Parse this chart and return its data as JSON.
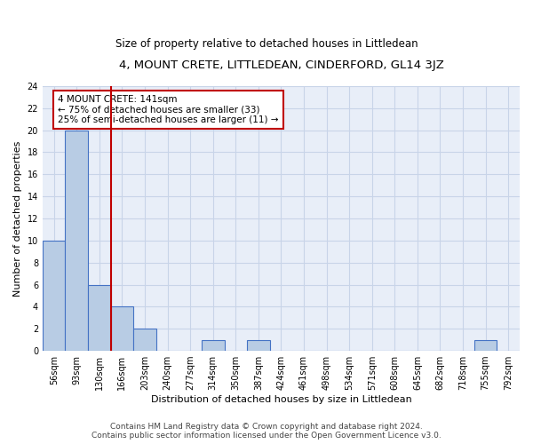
{
  "title": "4, MOUNT CRETE, LITTLEDEAN, CINDERFORD, GL14 3JZ",
  "subtitle": "Size of property relative to detached houses in Littledean",
  "xlabel": "Distribution of detached houses by size in Littledean",
  "ylabel": "Number of detached properties",
  "categories": [
    "56sqm",
    "93sqm",
    "130sqm",
    "166sqm",
    "203sqm",
    "240sqm",
    "277sqm",
    "314sqm",
    "350sqm",
    "387sqm",
    "424sqm",
    "461sqm",
    "498sqm",
    "534sqm",
    "571sqm",
    "608sqm",
    "645sqm",
    "682sqm",
    "718sqm",
    "755sqm",
    "792sqm"
  ],
  "values": [
    10,
    20,
    6,
    4,
    2,
    0,
    0,
    1,
    0,
    1,
    0,
    0,
    0,
    0,
    0,
    0,
    0,
    0,
    0,
    1,
    0
  ],
  "bar_color": "#b8cce4",
  "bar_edge_color": "#4472c4",
  "property_line_x": 2.5,
  "property_line_color": "#c00000",
  "annotation_text": "4 MOUNT CRETE: 141sqm\n← 75% of detached houses are smaller (33)\n25% of semi-detached houses are larger (11) →",
  "annotation_box_color": "white",
  "annotation_box_edge_color": "#c00000",
  "ylim": [
    0,
    24
  ],
  "yticks": [
    0,
    2,
    4,
    6,
    8,
    10,
    12,
    14,
    16,
    18,
    20,
    22,
    24
  ],
  "grid_color": "#c8d4e8",
  "background_color": "#e8eef8",
  "footer_line1": "Contains HM Land Registry data © Crown copyright and database right 2024.",
  "footer_line2": "Contains public sector information licensed under the Open Government Licence v3.0.",
  "title_fontsize": 9.5,
  "subtitle_fontsize": 8.5,
  "axis_label_fontsize": 8,
  "tick_fontsize": 7,
  "annotation_fontsize": 7.5,
  "footer_fontsize": 6.5
}
